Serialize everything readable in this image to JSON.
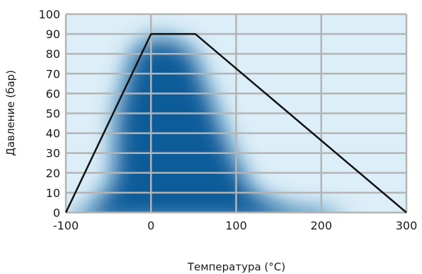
{
  "chart_data": {
    "type": "area",
    "xlabel": "Температура (°C)",
    "ylabel": "Давление (бар)",
    "xlim": [
      -100,
      300
    ],
    "ylim": [
      0,
      100
    ],
    "x_ticks": [
      -100,
      0,
      100,
      200,
      300
    ],
    "y_ticks": [
      0,
      10,
      20,
      30,
      40,
      50,
      60,
      70,
      80,
      90,
      100
    ],
    "grid": true,
    "series": [
      {
        "kind": "line",
        "x": [
          -100,
          0,
          52,
          300
        ],
        "y": [
          0,
          90,
          90,
          0
        ]
      }
    ],
    "colors": {
      "background": "#dceef8",
      "gradient_fill": "#0a5b9a",
      "grid": "#b4b4b4",
      "line": "#111111"
    }
  }
}
